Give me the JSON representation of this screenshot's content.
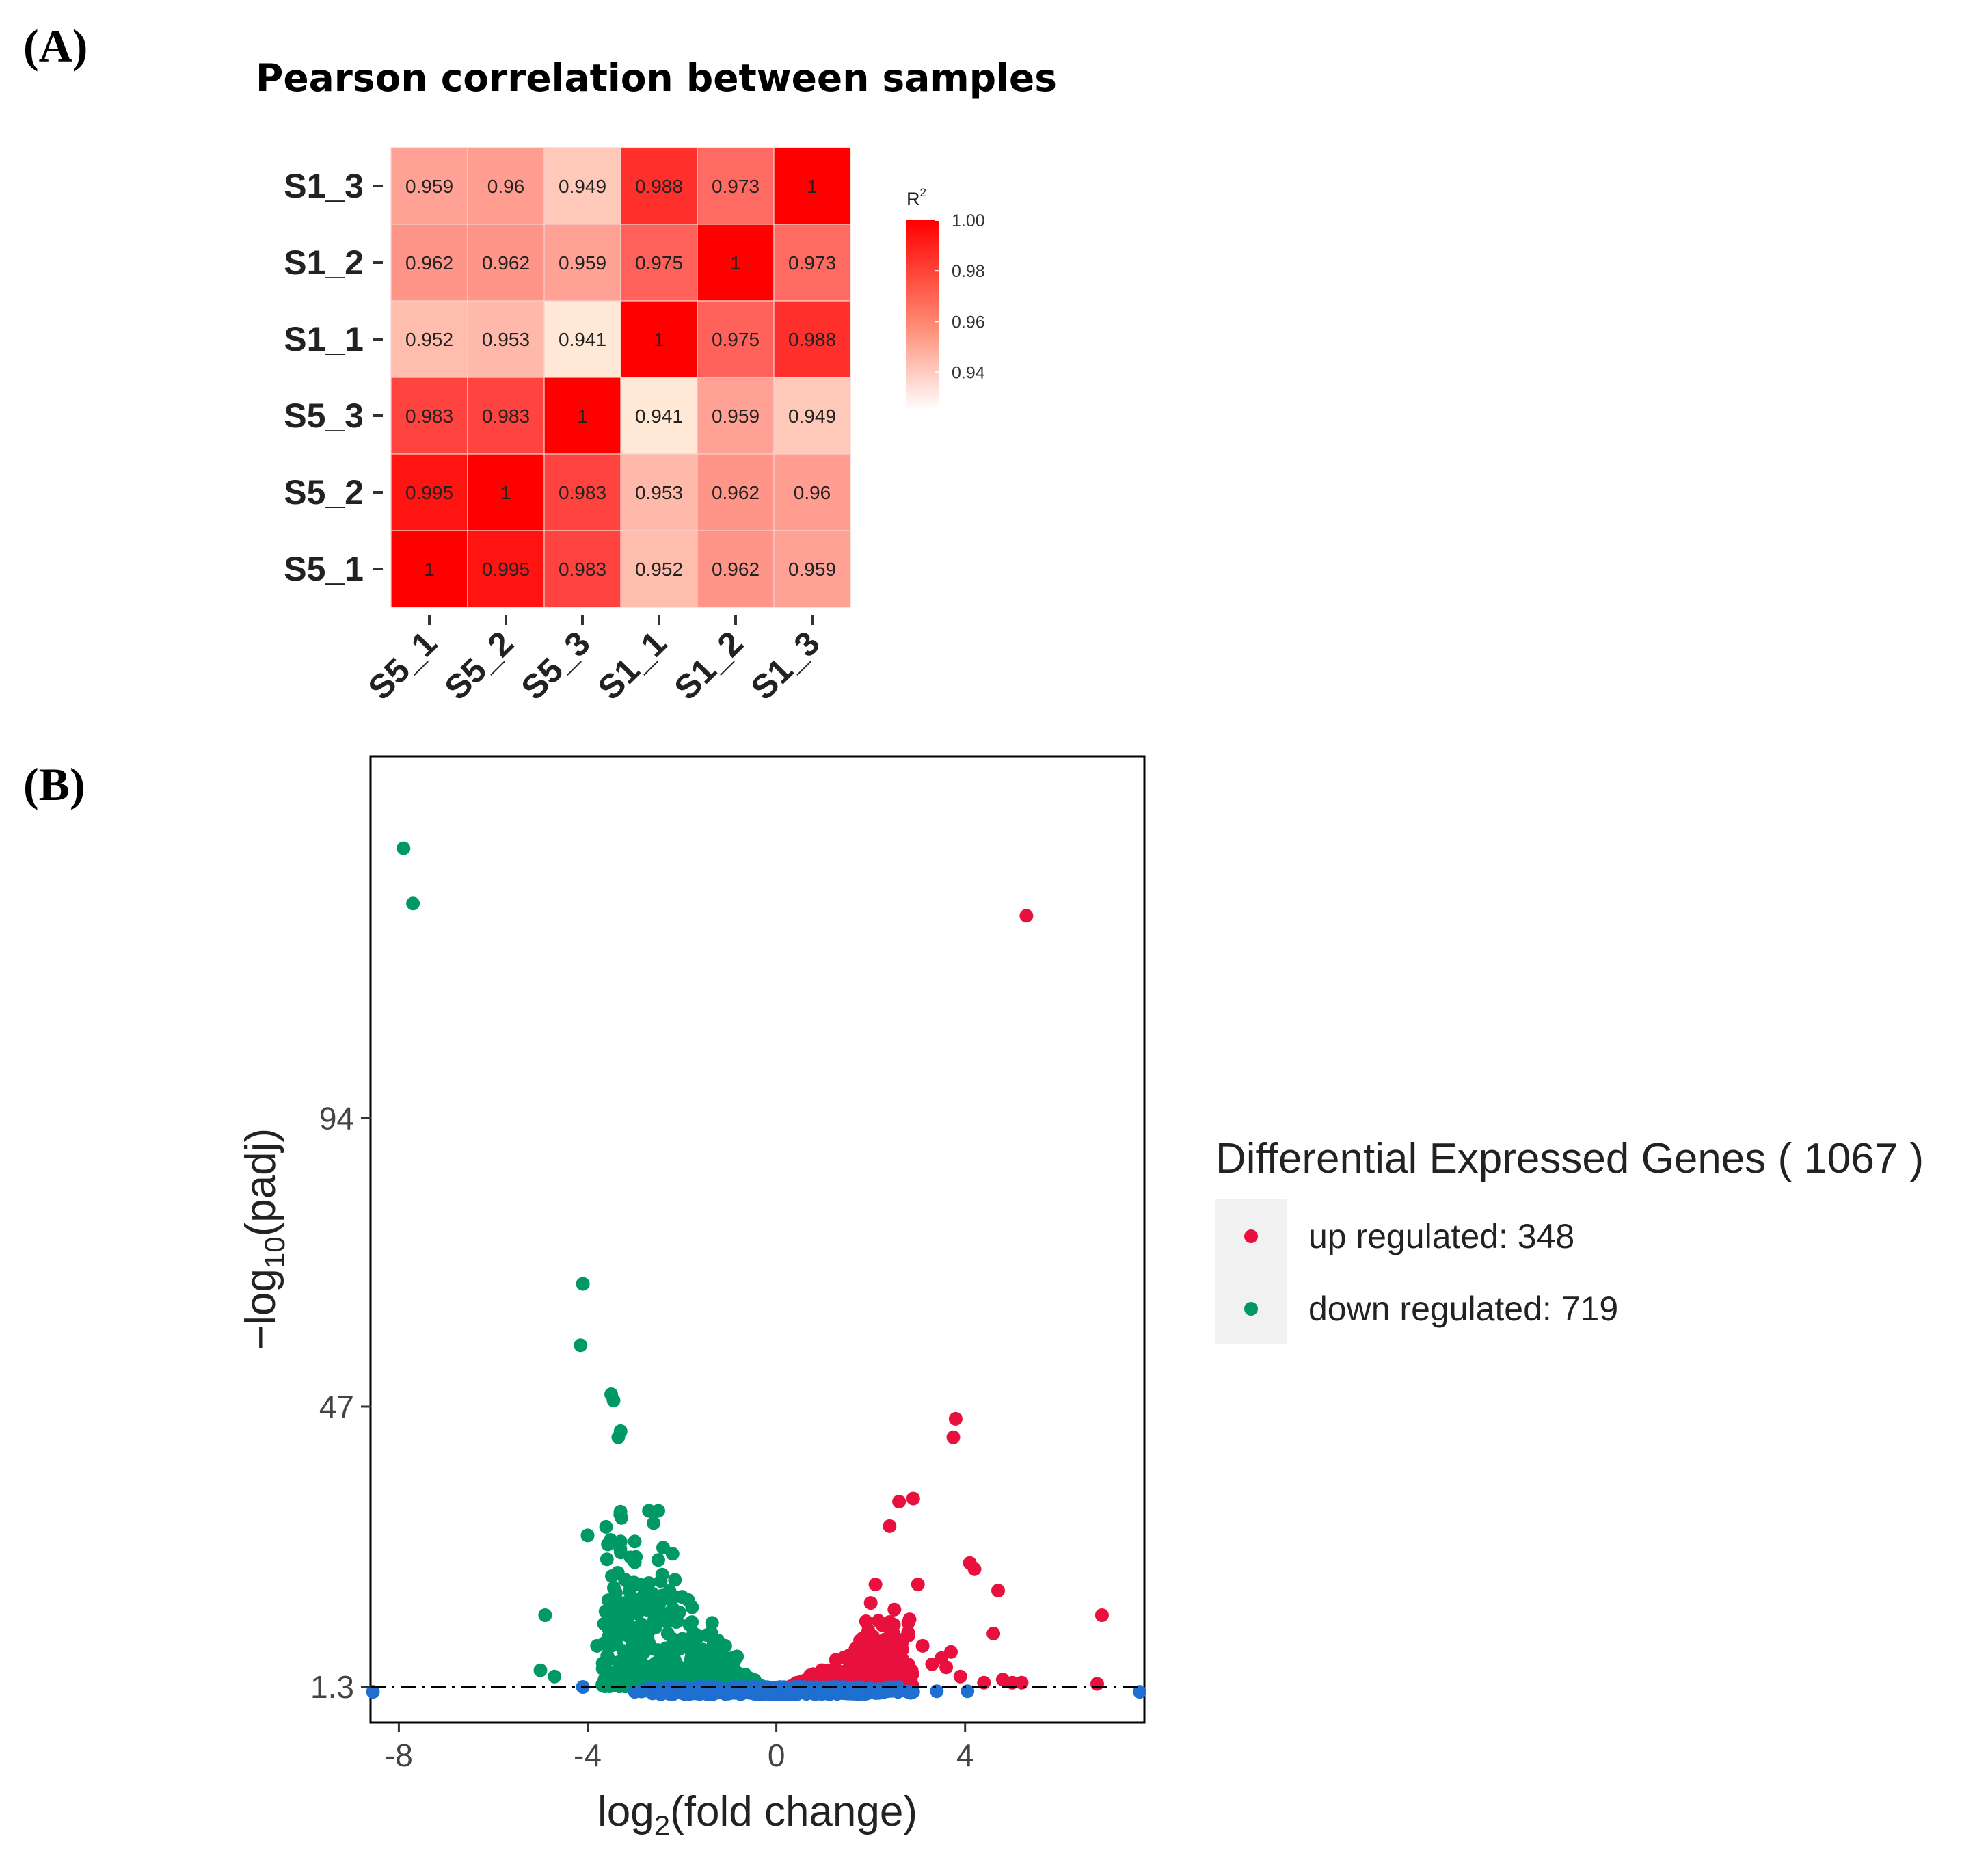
{
  "panels": {
    "a": "(A)",
    "b": "(B)"
  },
  "chart_data": [
    {
      "type": "heatmap",
      "title": "Pearson correlation between samples",
      "x_categories": [
        "S5_1",
        "S5_2",
        "S5_3",
        "S1_1",
        "S1_2",
        "S1_3"
      ],
      "y_categories_top_to_bottom": [
        "S1_3",
        "S1_2",
        "S1_1",
        "S5_3",
        "S5_2",
        "S5_1"
      ],
      "values": [
        [
          "0.959",
          "0.96",
          "0.949",
          "0.988",
          "0.973",
          "1"
        ],
        [
          "0.962",
          "0.962",
          "0.959",
          "0.975",
          "1",
          "0.973"
        ],
        [
          "0.952",
          "0.953",
          "0.941",
          "1",
          "0.975",
          "0.988"
        ],
        [
          "0.983",
          "0.983",
          "1",
          "0.941",
          "0.959",
          "0.949"
        ],
        [
          "0.995",
          "1",
          "0.983",
          "0.953",
          "0.962",
          "0.96"
        ],
        [
          "1",
          "0.995",
          "0.983",
          "0.952",
          "0.962",
          "0.959"
        ]
      ],
      "color_range": [
        0.941,
        1.0
      ],
      "color_low": "#ffffff",
      "color_high": "#ff0000",
      "legend": {
        "title": "R",
        "title_sup": "2",
        "ticks": [
          "1.00",
          "0.98",
          "0.96",
          "0.94"
        ],
        "tick_values": [
          1.0,
          0.98,
          0.96,
          0.94
        ]
      }
    },
    {
      "type": "scatter",
      "xlabel_main": "log",
      "xlabel_sub": "2",
      "xlabel_rest": "(fold change)",
      "ylabel_prefix": "−log",
      "ylabel_sub": "10",
      "ylabel_rest": "(padj)",
      "xlim": [
        -8.6,
        7.8
      ],
      "ylim": [
        -4.5,
        153
      ],
      "x_ticks": [
        "-8",
        "-4",
        "0",
        "4"
      ],
      "x_tick_values": [
        -8,
        -4,
        0,
        4
      ],
      "y_ticks": [
        "1.3",
        "47",
        "94"
      ],
      "y_tick_values": [
        1.3,
        47,
        94
      ],
      "threshold": 1.3,
      "legend": {
        "title": "Differential Expressed Genes ( 1067 )",
        "up_label": "up regulated: 348",
        "down_label": "down regulated: 719"
      },
      "colors": {
        "up": "#e8103c",
        "down": "#009966",
        "ns": "#1f6fd1"
      },
      "series": [
        {
          "name": "up",
          "points": [
            [
              5.3,
              127
            ],
            [
              3.8,
              45
            ],
            [
              3.75,
              42
            ],
            [
              2.9,
              32
            ],
            [
              2.6,
              31.5
            ],
            [
              2.4,
              27.5
            ],
            [
              4.1,
              21.5
            ],
            [
              4.2,
              20.5
            ],
            [
              3.0,
              18
            ],
            [
              2.1,
              18
            ],
            [
              4.7,
              17
            ],
            [
              2.0,
              15
            ],
            [
              6.9,
              13
            ],
            [
              1.9,
              12
            ],
            [
              1.95,
              10.5
            ],
            [
              1.8,
              9
            ],
            [
              2.6,
              9
            ],
            [
              2.3,
              8
            ],
            [
              3.1,
              8
            ],
            [
              3.7,
              7
            ],
            [
              4.6,
              10
            ],
            [
              2.5,
              6
            ],
            [
              3.5,
              6
            ],
            [
              3.3,
              5
            ],
            [
              3.6,
              4.5
            ],
            [
              3.9,
              3
            ],
            [
              4.8,
              2.5
            ],
            [
              5.2,
              2
            ],
            [
              5.0,
              2
            ],
            [
              4.4,
              2
            ],
            [
              6.8,
              1.8
            ]
          ]
        },
        {
          "name": "down",
          "points": [
            [
              -7.9,
              138
            ],
            [
              -7.7,
              129
            ],
            [
              -4.1,
              67
            ],
            [
              -4.15,
              57
            ],
            [
              -3.5,
              49
            ],
            [
              -3.45,
              48
            ],
            [
              -3.3,
              43
            ],
            [
              -3.35,
              42
            ],
            [
              -4.0,
              26
            ],
            [
              -3.3,
              25
            ],
            [
              -3.0,
              25
            ],
            [
              -2.7,
              30
            ],
            [
              -2.5,
              30
            ],
            [
              -2.6,
              28
            ],
            [
              -2.4,
              24
            ],
            [
              -2.2,
              23
            ],
            [
              -2.5,
              22
            ],
            [
              -2.9,
              18
            ],
            [
              -3.1,
              14
            ],
            [
              -3.3,
              11
            ],
            [
              -3.5,
              8
            ],
            [
              -3.8,
              8
            ],
            [
              -4.9,
              13
            ],
            [
              -5.0,
              4
            ],
            [
              -4.7,
              3
            ],
            [
              -3.6,
              4
            ],
            [
              -3.4,
              3
            ],
            [
              -3.2,
              3
            ],
            [
              -3.0,
              5
            ],
            [
              -2.2,
              14
            ],
            [
              -2.0,
              16
            ],
            [
              -2.1,
              12
            ],
            [
              -2.3,
              10
            ],
            [
              -2.6,
              12
            ],
            [
              -2.0,
              9
            ],
            [
              -1.8,
              7
            ],
            [
              -1.6,
              5
            ],
            [
              -2.8,
              7
            ],
            [
              -2.4,
              4
            ]
          ]
        },
        {
          "name": "ns",
          "points": [
            [
              -8.55,
              0.5
            ],
            [
              7.7,
              0.5
            ],
            [
              -4.1,
              1.3
            ],
            [
              4.05,
              0.6
            ],
            [
              3.4,
              0.6
            ],
            [
              -3.0,
              0.5
            ],
            [
              2.9,
              0.5
            ]
          ]
        }
      ]
    }
  ]
}
